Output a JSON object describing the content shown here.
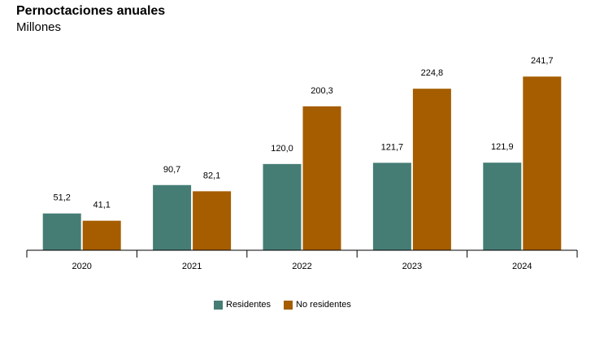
{
  "chart_data": {
    "type": "bar",
    "title": "Pernoctaciones anuales",
    "subtitle": "Millones",
    "categories": [
      "2020",
      "2021",
      "2022",
      "2023",
      "2024"
    ],
    "series": [
      {
        "name": "Residentes",
        "color": "#457d75",
        "values": [
          51.2,
          90.7,
          120.0,
          121.7,
          121.9
        ],
        "labels": [
          "51,2",
          "90,7",
          "120,0",
          "121,7",
          "121,9"
        ]
      },
      {
        "name": "No residentes",
        "color": "#a55d00",
        "values": [
          41.1,
          82.1,
          200.3,
          224.8,
          241.7
        ],
        "labels": [
          "41,1",
          "82,1",
          "200,3",
          "224,8",
          "241,7"
        ]
      }
    ],
    "ylim": [
      0,
      300
    ],
    "grid": false,
    "legend_position": "bottom-center",
    "xlabel": "",
    "ylabel": ""
  }
}
